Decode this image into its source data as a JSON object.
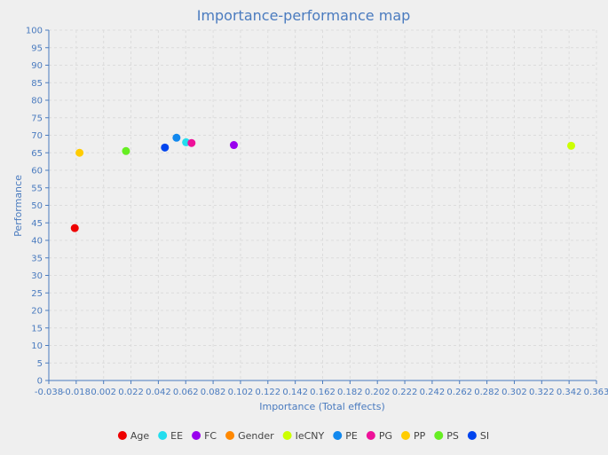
{
  "chart_data": {
    "type": "scatter",
    "title": "Importance-performance map",
    "xlabel": "Importance (Total effects)",
    "ylabel": "Performance",
    "xlim": [
      -0.038,
      0.363
    ],
    "ylim": [
      0,
      100
    ],
    "xticks": [
      "-0.038",
      "-0.018",
      "0.002",
      "0.022",
      "0.042",
      "0.062",
      "0.082",
      "0.102",
      "0.122",
      "0.142",
      "0.162",
      "0.182",
      "0.202",
      "0.222",
      "0.242",
      "0.262",
      "0.282",
      "0.302",
      "0.322",
      "0.342",
      "0.363"
    ],
    "yticks": [
      0,
      5,
      10,
      15,
      20,
      25,
      30,
      35,
      40,
      45,
      50,
      55,
      60,
      65,
      70,
      75,
      80,
      85,
      90,
      95,
      100
    ],
    "grid": true,
    "legend_position": "bottom",
    "series": [
      {
        "name": "Age",
        "color": "#ee0000",
        "x": -0.019,
        "y": 43.5
      },
      {
        "name": "EE",
        "color": "#22ddee",
        "x": 0.0625,
        "y": 68.0
      },
      {
        "name": "FC",
        "color": "#9900ee",
        "x": 0.0975,
        "y": 67.2
      },
      {
        "name": "Gender",
        "color": "#ff8800",
        "x": null,
        "y": null
      },
      {
        "name": "IeCNY",
        "color": "#ccff00",
        "x": 0.3445,
        "y": 67.0
      },
      {
        "name": "PE",
        "color": "#1188ee",
        "x": 0.0555,
        "y": 69.3
      },
      {
        "name": "PG",
        "color": "#ee1199",
        "x": 0.0665,
        "y": 67.8
      },
      {
        "name": "PP",
        "color": "#ffcc00",
        "x": -0.0155,
        "y": 65.0
      },
      {
        "name": "PS",
        "color": "#66ee22",
        "x": 0.0185,
        "y": 65.5
      },
      {
        "name": "SI",
        "color": "#0044ee",
        "x": 0.047,
        "y": 66.5
      }
    ]
  },
  "style": {
    "axis_color": "#4a7bbf",
    "grid_color": "#dcdcdc",
    "background": "#efefef"
  }
}
